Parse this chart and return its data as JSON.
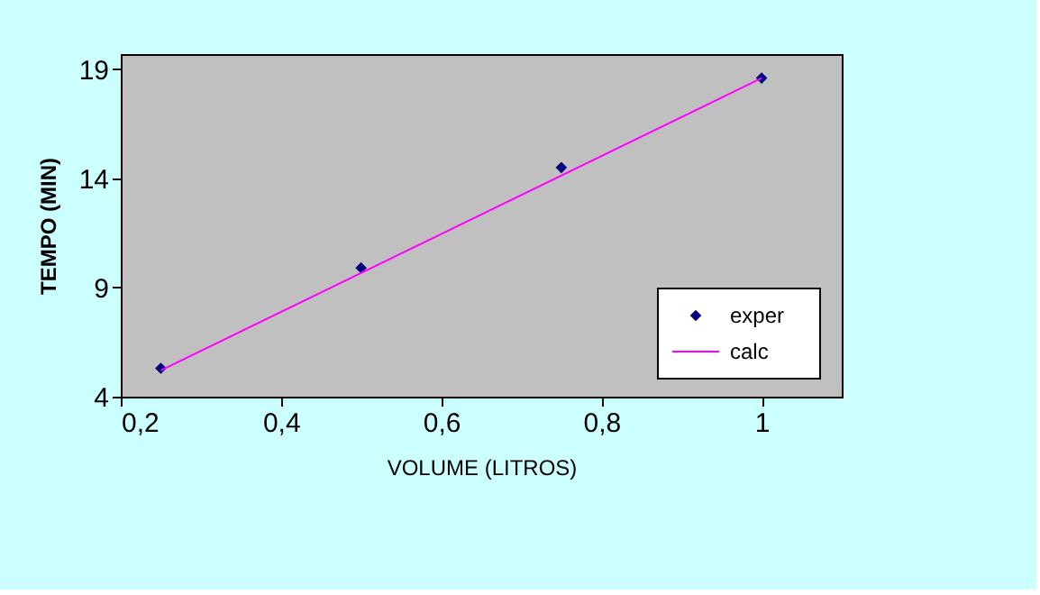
{
  "chart_data": {
    "type": "scatter",
    "xlabel": "VOLUME (LITROS)",
    "ylabel": "TEMPO (MIN)",
    "x": [
      0.25,
      0.5,
      0.75,
      1.0
    ],
    "series": [
      {
        "name": "exper",
        "type": "scatter",
        "color": "#000080",
        "marker": "diamond",
        "values": [
          5.3,
          9.9,
          14.5,
          18.6
        ]
      },
      {
        "name": "calc",
        "type": "line",
        "color": "#ff00ff",
        "marker": "none",
        "line_style": "solid",
        "x": [
          0.25,
          1.0
        ],
        "values": [
          5.2,
          18.6
        ]
      }
    ],
    "xlim": [
      0.2,
      1.1
    ],
    "ylim": [
      4,
      19.7
    ],
    "xticks": [
      {
        "value": 0.2,
        "label": "0,2"
      },
      {
        "value": 0.4,
        "label": "0,4"
      },
      {
        "value": 0.6,
        "label": "0,6"
      },
      {
        "value": 0.8,
        "label": "0,8"
      },
      1
    ],
    "yticks": [
      4,
      9,
      14,
      19
    ],
    "grid": false,
    "legend": "bottom right"
  }
}
